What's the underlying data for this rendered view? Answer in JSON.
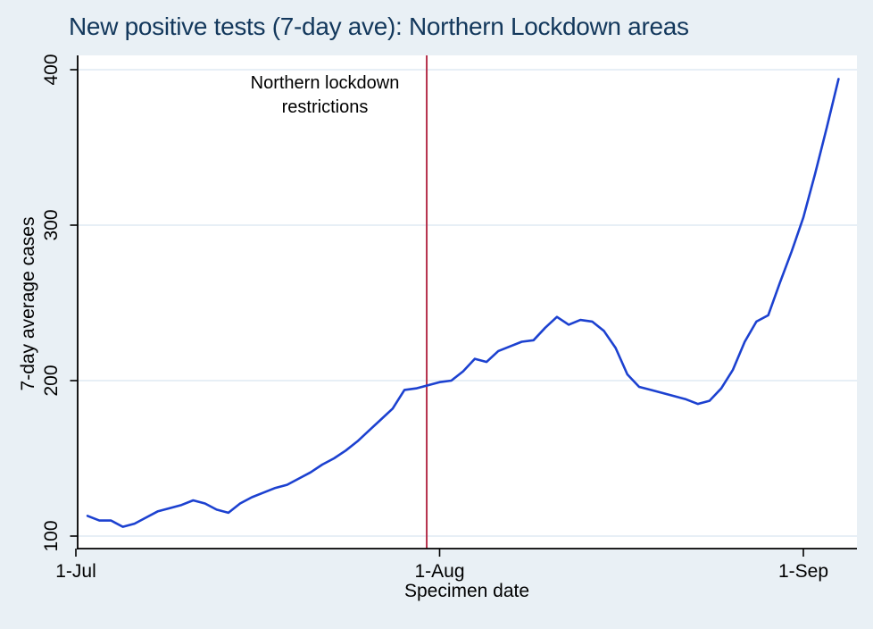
{
  "title": "New positive tests (7-day ave): Northern Lockdown areas",
  "annotation": {
    "line1": "Northern lockdown",
    "line2": "restrictions"
  },
  "axes": {
    "y_label": "7-day average cases",
    "x_label": "Specimen date",
    "y_tick_labels": [
      "100",
      "200",
      "300",
      "400"
    ],
    "x_tick_labels": [
      "1-Jul",
      "1-Aug",
      "1-Sep"
    ]
  },
  "colors": {
    "background": "#e9f0f5",
    "plot_bg": "#ffffff",
    "grid": "#dfeaf3",
    "axis": "#000000",
    "title_color": "#13385c",
    "line": "#1c41d0",
    "vline": "#b5314c",
    "text": "#000000"
  },
  "chart_data": {
    "type": "line",
    "title": "New positive tests (7-day ave): Northern Lockdown areas",
    "xlabel": "Specimen date",
    "ylabel": "7-day average cases",
    "x_unit": "days since 1-Jul",
    "x_ticks": [
      {
        "label": "1-Jul",
        "offset": 0
      },
      {
        "label": "1-Aug",
        "offset": 31
      },
      {
        "label": "1-Sep",
        "offset": 62
      }
    ],
    "y_ticks": [
      100,
      200,
      300,
      400
    ],
    "ylim": [
      92,
      409
    ],
    "grid": "horizontal",
    "vline": {
      "x_offset": 29.9,
      "label": "Northern lockdown restrictions"
    },
    "x": [
      1,
      2,
      3,
      4,
      5,
      6,
      7,
      8,
      9,
      10,
      11,
      12,
      13,
      14,
      15,
      16,
      17,
      18,
      19,
      20,
      21,
      22,
      23,
      24,
      25,
      26,
      27,
      28,
      29,
      30,
      31,
      32,
      33,
      34,
      35,
      36,
      37,
      38,
      39,
      40,
      41,
      42,
      43,
      44,
      45,
      46,
      47,
      48,
      49,
      50,
      51,
      52,
      53,
      54,
      55,
      56,
      57,
      58,
      59,
      60,
      61,
      62,
      63,
      64,
      65
    ],
    "series": [
      {
        "name": "7-day average cases",
        "values": [
          113,
          110,
          110,
          106,
          108,
          112,
          116,
          118,
          120,
          123,
          121,
          117,
          115,
          121,
          125,
          128,
          131,
          133,
          137,
          141,
          146,
          150,
          155,
          161,
          168,
          175,
          182,
          194,
          195,
          197,
          199,
          200,
          206,
          214,
          212,
          219,
          222,
          225,
          226,
          234,
          241,
          236,
          239,
          238,
          232,
          221,
          204,
          196,
          194,
          192,
          190,
          188,
          185,
          187,
          195,
          207,
          225,
          238,
          242,
          263,
          283,
          305,
          333,
          363,
          394
        ]
      }
    ]
  }
}
